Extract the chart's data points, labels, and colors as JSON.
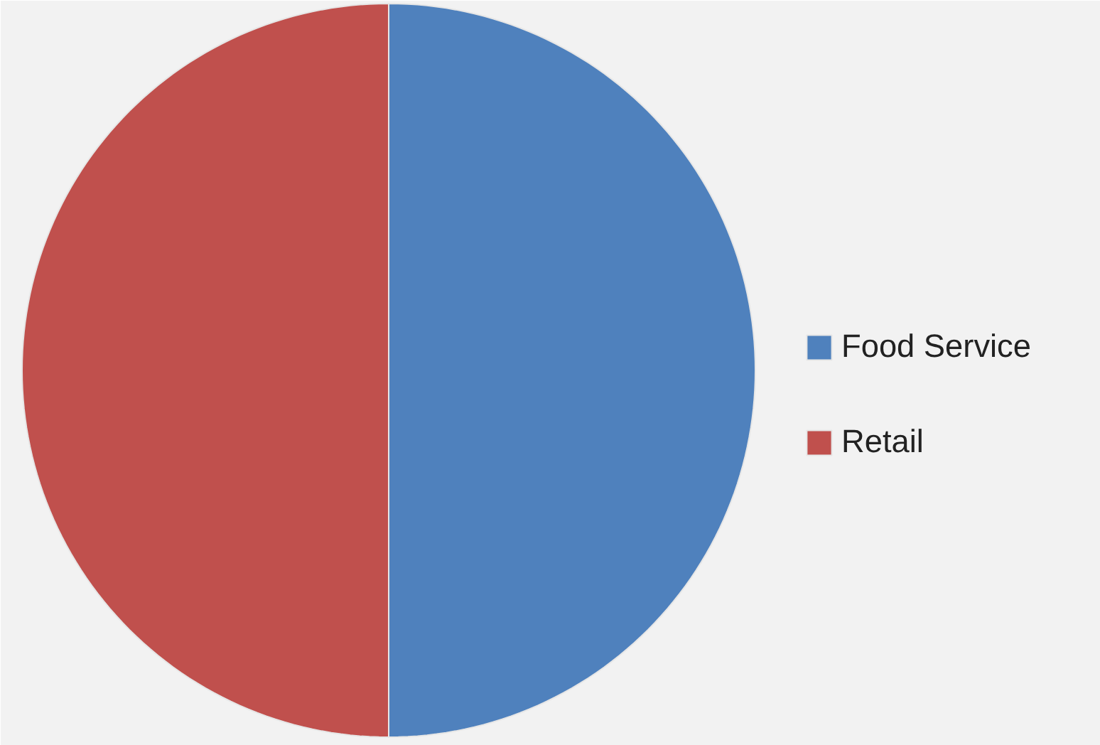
{
  "chart_data": {
    "type": "pie",
    "categories": [
      "Food Service",
      "Retail"
    ],
    "values": [
      50,
      50
    ],
    "colors": [
      "#4f81bd",
      "#c0504d"
    ],
    "legend": "right"
  }
}
